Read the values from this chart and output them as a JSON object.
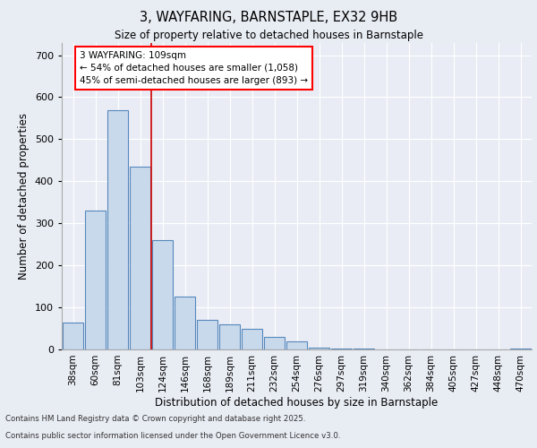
{
  "title1": "3, WAYFARING, BARNSTAPLE, EX32 9HB",
  "title2": "Size of property relative to detached houses in Barnstaple",
  "xlabel": "Distribution of detached houses by size in Barnstaple",
  "ylabel": "Number of detached properties",
  "categories": [
    "38sqm",
    "60sqm",
    "81sqm",
    "103sqm",
    "124sqm",
    "146sqm",
    "168sqm",
    "189sqm",
    "211sqm",
    "232sqm",
    "254sqm",
    "276sqm",
    "297sqm",
    "319sqm",
    "340sqm",
    "362sqm",
    "384sqm",
    "405sqm",
    "427sqm",
    "448sqm",
    "470sqm"
  ],
  "values": [
    65,
    330,
    570,
    435,
    260,
    125,
    70,
    60,
    50,
    30,
    20,
    5,
    3,
    3,
    0,
    0,
    0,
    0,
    0,
    0,
    3
  ],
  "bar_color": "#c9d9ec",
  "bar_edge_color": "#5588bb",
  "bar_edge_width": 0.8,
  "red_line_x": 3.5,
  "annotation_line1": "3 WAYFARING: 109sqm",
  "annotation_line2": "← 54% of detached houses are smaller (1,058)",
  "annotation_line3": "45% of semi-detached houses are larger (893) →",
  "annotation_box_color": "white",
  "annotation_box_edge_color": "red",
  "red_line_color": "#cc0000",
  "bg_color": "#e8ecf3",
  "plot_bg_color": "#eaecf5",
  "grid_color": "white",
  "ylim": [
    0,
    730
  ],
  "yticks": [
    0,
    100,
    200,
    300,
    400,
    500,
    600,
    700
  ],
  "footnote1": "Contains HM Land Registry data © Crown copyright and database right 2025.",
  "footnote2": "Contains public sector information licensed under the Open Government Licence v3.0."
}
